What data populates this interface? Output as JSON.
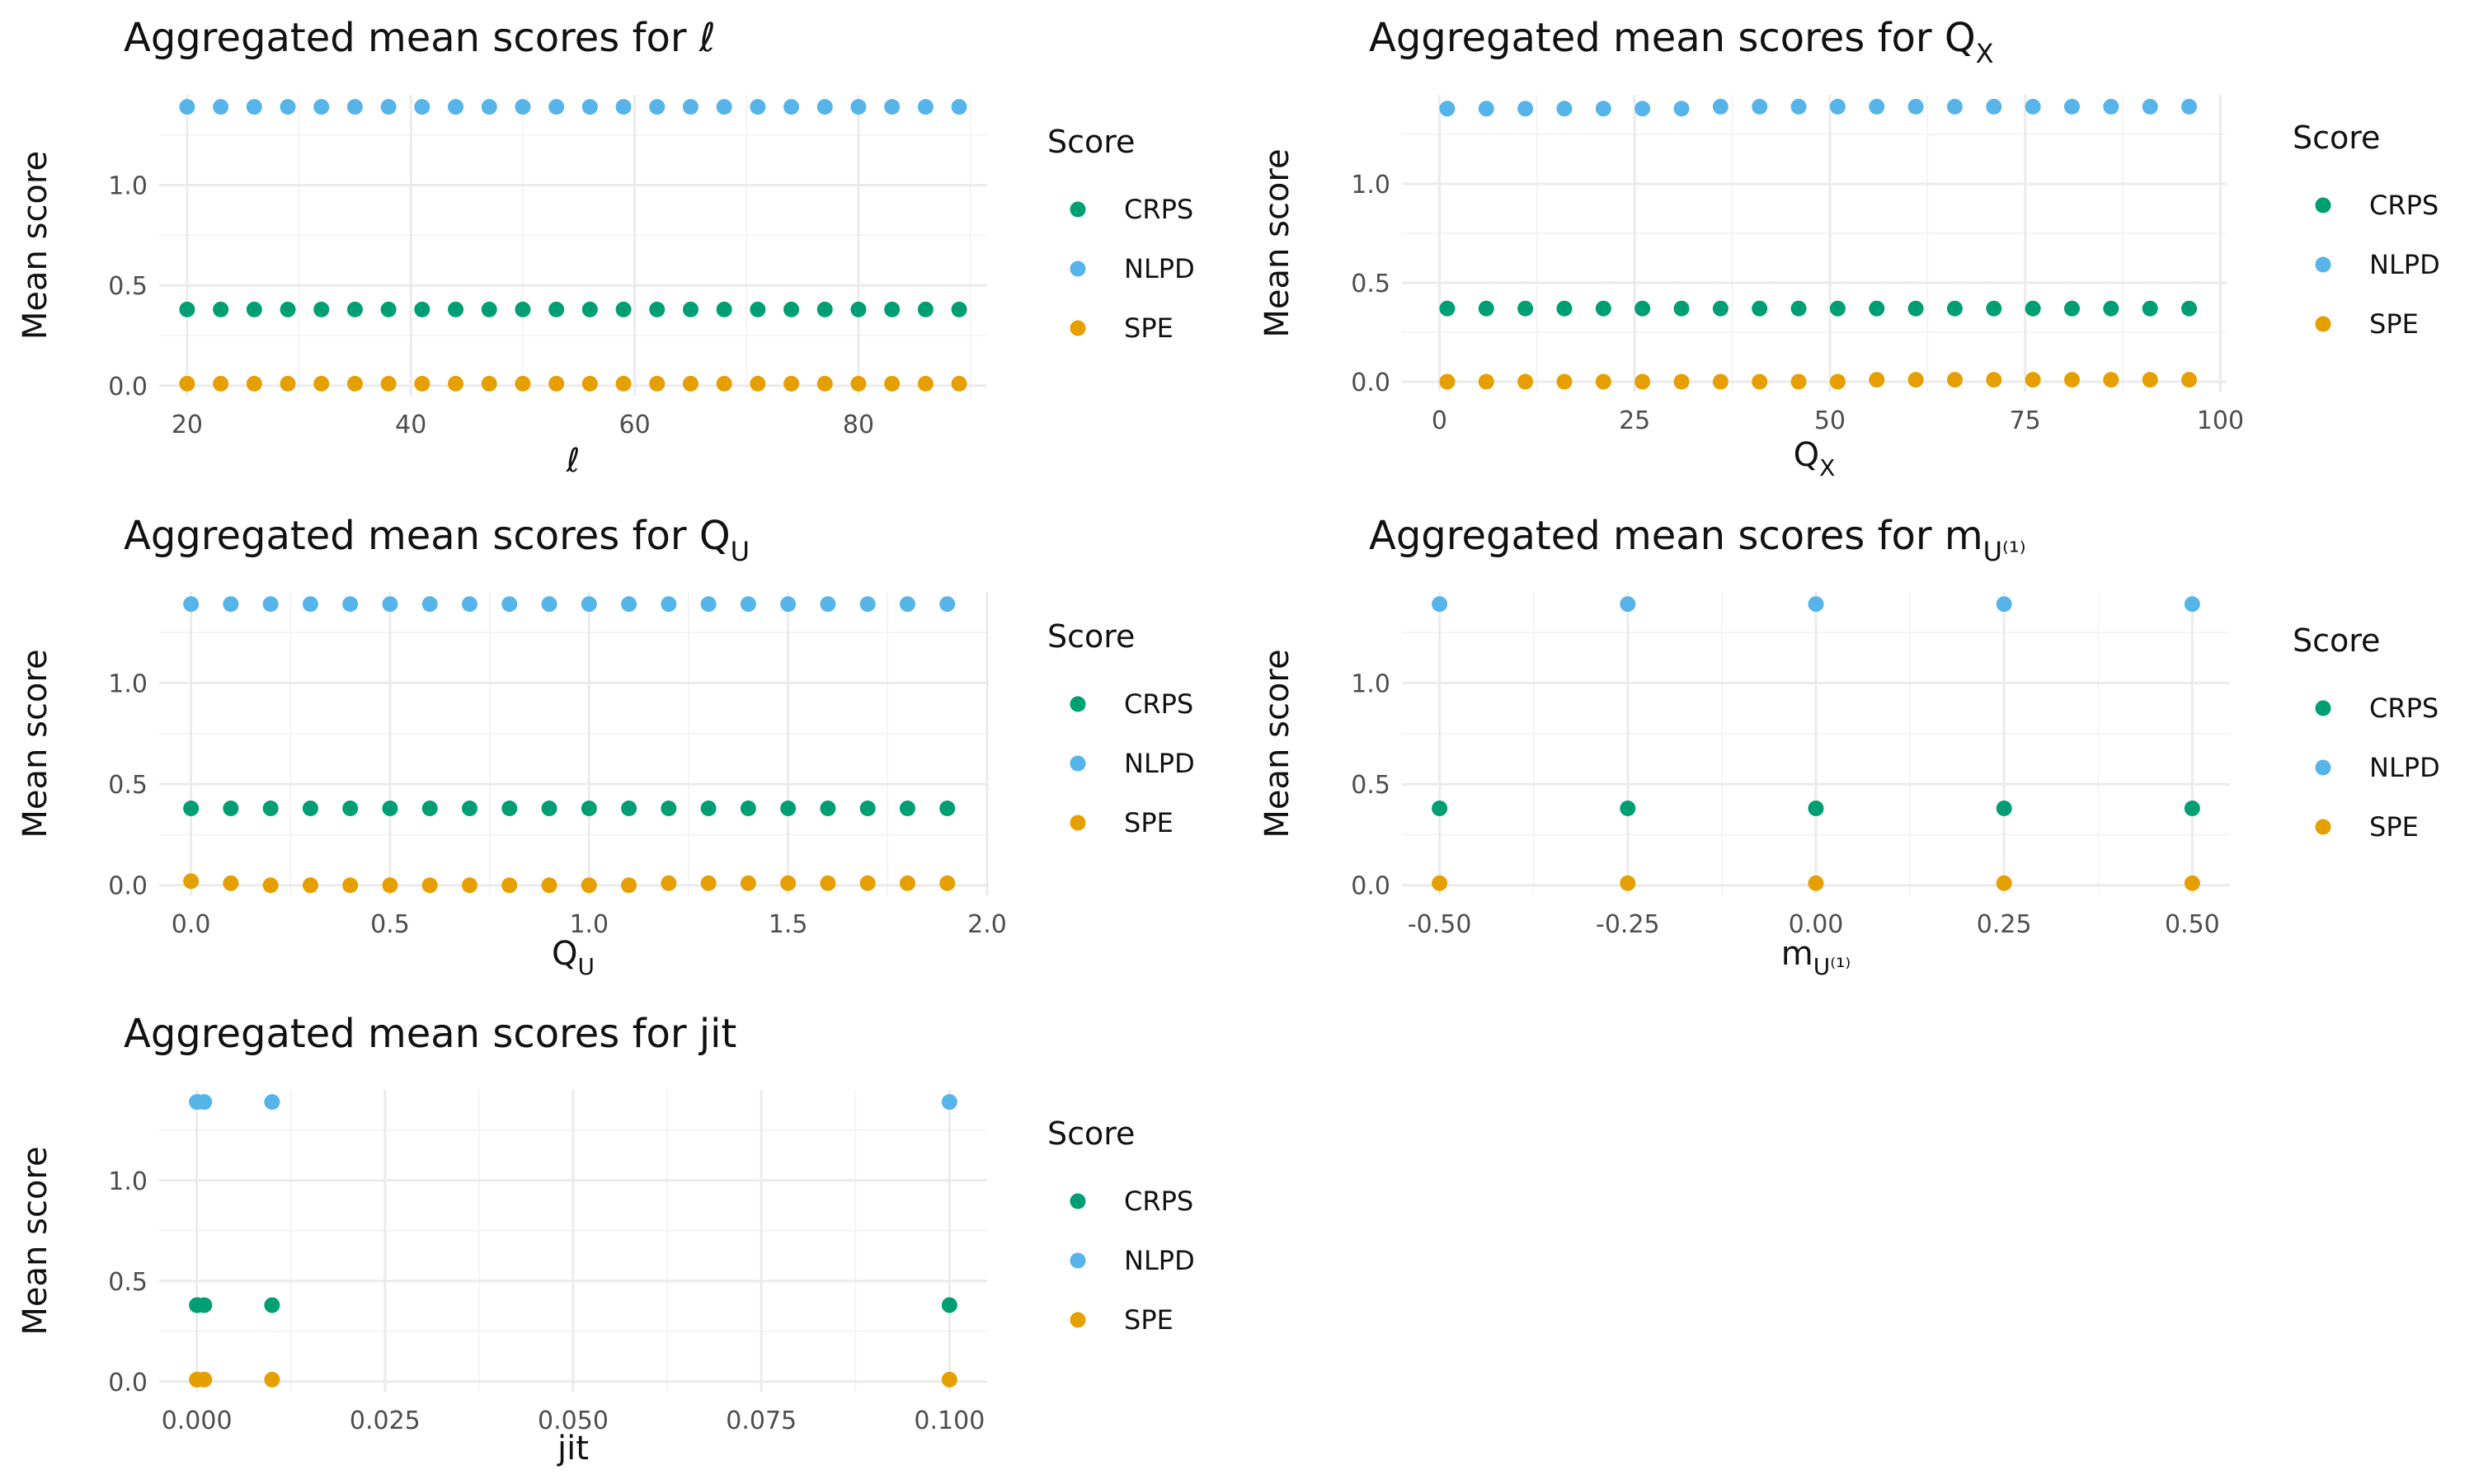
{
  "legend": {
    "title": "Score",
    "entries": [
      {
        "name": "CRPS",
        "color": "#009E73"
      },
      {
        "name": "NLPD",
        "color": "#56B4E9"
      },
      {
        "name": "SPE",
        "color": "#E69F00"
      }
    ]
  },
  "chart_data": [
    {
      "type": "scatter",
      "title": "Aggregated mean scores for ℓ",
      "xlabel": "ℓ",
      "ylabel": "Mean score",
      "xlim": [
        17.5,
        91.5
      ],
      "ylim": [
        -0.05,
        1.45
      ],
      "xticks": [
        20,
        40,
        60,
        80
      ],
      "xtick_labels": [
        "20",
        "40",
        "60",
        "80"
      ],
      "yticks": [
        0.0,
        0.5,
        1.0
      ],
      "ytick_labels": [
        "0.0",
        "0.5",
        "1.0"
      ],
      "grid": true,
      "legend_position": "right",
      "x": [
        20,
        23,
        26,
        29,
        32,
        35,
        38,
        41,
        44,
        47,
        50,
        53,
        56,
        59,
        62,
        65,
        68,
        71,
        74,
        77,
        80,
        83,
        86,
        89
      ],
      "series": [
        {
          "name": "NLPD",
          "color": "#56B4E9",
          "values": [
            1.39,
            1.39,
            1.39,
            1.39,
            1.39,
            1.39,
            1.39,
            1.39,
            1.39,
            1.39,
            1.39,
            1.39,
            1.39,
            1.39,
            1.39,
            1.39,
            1.39,
            1.39,
            1.39,
            1.39,
            1.39,
            1.39,
            1.39,
            1.39
          ]
        },
        {
          "name": "CRPS",
          "color": "#009E73",
          "values": [
            0.38,
            0.38,
            0.38,
            0.38,
            0.38,
            0.38,
            0.38,
            0.38,
            0.38,
            0.38,
            0.38,
            0.38,
            0.38,
            0.38,
            0.38,
            0.38,
            0.38,
            0.38,
            0.38,
            0.38,
            0.38,
            0.38,
            0.38,
            0.38
          ]
        },
        {
          "name": "SPE",
          "color": "#E69F00",
          "values": [
            0.01,
            0.01,
            0.01,
            0.01,
            0.01,
            0.01,
            0.01,
            0.01,
            0.01,
            0.01,
            0.01,
            0.01,
            0.01,
            0.01,
            0.01,
            0.01,
            0.01,
            0.01,
            0.01,
            0.01,
            0.01,
            0.01,
            0.01,
            0.01
          ]
        }
      ]
    },
    {
      "type": "scatter",
      "title": "Aggregated mean scores for Q",
      "title_subscript": "X",
      "xlabel": "Q",
      "xlabel_subscript": "X",
      "ylabel": "Mean score",
      "xlim": [
        -4.8,
        100.8
      ],
      "ylim": [
        -0.05,
        1.45
      ],
      "xticks": [
        0,
        25,
        50,
        75,
        100
      ],
      "xtick_labels": [
        "0",
        "25",
        "50",
        "75",
        "100"
      ],
      "yticks": [
        0.0,
        0.5,
        1.0
      ],
      "ytick_labels": [
        "0.0",
        "0.5",
        "1.0"
      ],
      "grid": true,
      "legend_position": "right",
      "x": [
        1,
        6,
        11,
        16,
        21,
        26,
        31,
        36,
        41,
        46,
        51,
        56,
        61,
        66,
        71,
        76,
        81,
        86,
        91,
        96
      ],
      "series": [
        {
          "name": "NLPD",
          "color": "#56B4E9",
          "values": [
            1.38,
            1.38,
            1.38,
            1.38,
            1.38,
            1.38,
            1.38,
            1.39,
            1.39,
            1.39,
            1.39,
            1.39,
            1.39,
            1.39,
            1.39,
            1.39,
            1.39,
            1.39,
            1.39,
            1.39
          ]
        },
        {
          "name": "CRPS",
          "color": "#009E73",
          "values": [
            0.37,
            0.37,
            0.37,
            0.37,
            0.37,
            0.37,
            0.37,
            0.37,
            0.37,
            0.37,
            0.37,
            0.37,
            0.37,
            0.37,
            0.37,
            0.37,
            0.37,
            0.37,
            0.37,
            0.37
          ]
        },
        {
          "name": "SPE",
          "color": "#E69F00",
          "values": [
            0.0,
            0.0,
            0.0,
            0.0,
            0.0,
            0.0,
            0.0,
            0.0,
            0.0,
            0.0,
            0.0,
            0.01,
            0.01,
            0.01,
            0.01,
            0.01,
            0.01,
            0.01,
            0.01,
            0.01
          ]
        }
      ]
    },
    {
      "type": "scatter",
      "title": "Aggregated mean scores for Q",
      "title_subscript": "U",
      "xlabel": "Q",
      "xlabel_subscript": "U",
      "ylabel": "Mean score",
      "xlim": [
        -0.08,
        2.0
      ],
      "ylim": [
        -0.05,
        1.45
      ],
      "xticks": [
        0.0,
        0.5,
        1.0,
        1.5,
        2.0
      ],
      "xtick_labels": [
        "0.0",
        "0.5",
        "1.0",
        "1.5",
        "2.0"
      ],
      "yticks": [
        0.0,
        0.5,
        1.0
      ],
      "ytick_labels": [
        "0.0",
        "0.5",
        "1.0"
      ],
      "grid": true,
      "legend_position": "right",
      "x": [
        0.0,
        0.1,
        0.2,
        0.3,
        0.4,
        0.5,
        0.6,
        0.7,
        0.8,
        0.9,
        1.0,
        1.1,
        1.2,
        1.3,
        1.4,
        1.5,
        1.6,
        1.7,
        1.8,
        1.9
      ],
      "series": [
        {
          "name": "NLPD",
          "color": "#56B4E9",
          "values": [
            1.39,
            1.39,
            1.39,
            1.39,
            1.39,
            1.39,
            1.39,
            1.39,
            1.39,
            1.39,
            1.39,
            1.39,
            1.39,
            1.39,
            1.39,
            1.39,
            1.39,
            1.39,
            1.39,
            1.39
          ]
        },
        {
          "name": "CRPS",
          "color": "#009E73",
          "values": [
            0.38,
            0.38,
            0.38,
            0.38,
            0.38,
            0.38,
            0.38,
            0.38,
            0.38,
            0.38,
            0.38,
            0.38,
            0.38,
            0.38,
            0.38,
            0.38,
            0.38,
            0.38,
            0.38,
            0.38
          ]
        },
        {
          "name": "SPE",
          "color": "#E69F00",
          "values": [
            0.02,
            0.01,
            0.0,
            0.0,
            0.0,
            0.0,
            0.0,
            0.0,
            0.0,
            0.0,
            0.0,
            0.0,
            0.01,
            0.01,
            0.01,
            0.01,
            0.01,
            0.01,
            0.01,
            0.01
          ]
        }
      ]
    },
    {
      "type": "scatter",
      "title": "Aggregated mean scores for m",
      "title_subscript": "U⁽¹⁾",
      "xlabel": "m",
      "xlabel_subscript": "U⁽¹⁾",
      "ylabel": "Mean score",
      "xlim": [
        -0.55,
        0.55
      ],
      "ylim": [
        -0.05,
        1.45
      ],
      "xticks": [
        -0.5,
        -0.25,
        0.0,
        0.25,
        0.5
      ],
      "xtick_labels": [
        "-0.50",
        "-0.25",
        "0.00",
        "0.25",
        "0.50"
      ],
      "yticks": [
        0.0,
        0.5,
        1.0
      ],
      "ytick_labels": [
        "0.0",
        "0.5",
        "1.0"
      ],
      "grid": true,
      "legend_position": "right",
      "x": [
        -0.5,
        -0.25,
        0.0,
        0.25,
        0.5
      ],
      "series": [
        {
          "name": "NLPD",
          "color": "#56B4E9",
          "values": [
            1.39,
            1.39,
            1.39,
            1.39,
            1.39
          ]
        },
        {
          "name": "CRPS",
          "color": "#009E73",
          "values": [
            0.38,
            0.38,
            0.38,
            0.38,
            0.38
          ]
        },
        {
          "name": "SPE",
          "color": "#E69F00",
          "values": [
            0.01,
            0.01,
            0.01,
            0.01,
            0.01
          ]
        }
      ]
    },
    {
      "type": "scatter",
      "title": "Aggregated mean scores for jit",
      "xlabel": "jit",
      "ylabel": "Mean score",
      "xlim": [
        -0.005,
        0.105
      ],
      "ylim": [
        -0.05,
        1.45
      ],
      "xticks": [
        0.0,
        0.025,
        0.05,
        0.075,
        0.1
      ],
      "xtick_labels": [
        "0.000",
        "0.025",
        "0.050",
        "0.075",
        "0.100"
      ],
      "yticks": [
        0.0,
        0.5,
        1.0
      ],
      "ytick_labels": [
        "0.0",
        "0.5",
        "1.0"
      ],
      "grid": true,
      "legend_position": "right",
      "x": [
        0.0,
        0.0001,
        0.001,
        0.01,
        0.1
      ],
      "series": [
        {
          "name": "NLPD",
          "color": "#56B4E9",
          "values": [
            1.39,
            1.39,
            1.39,
            1.39,
            1.39
          ]
        },
        {
          "name": "CRPS",
          "color": "#009E73",
          "values": [
            0.38,
            0.38,
            0.38,
            0.38,
            0.38
          ]
        },
        {
          "name": "SPE",
          "color": "#E69F00",
          "values": [
            0.01,
            0.01,
            0.01,
            0.01,
            0.01
          ]
        }
      ]
    }
  ]
}
